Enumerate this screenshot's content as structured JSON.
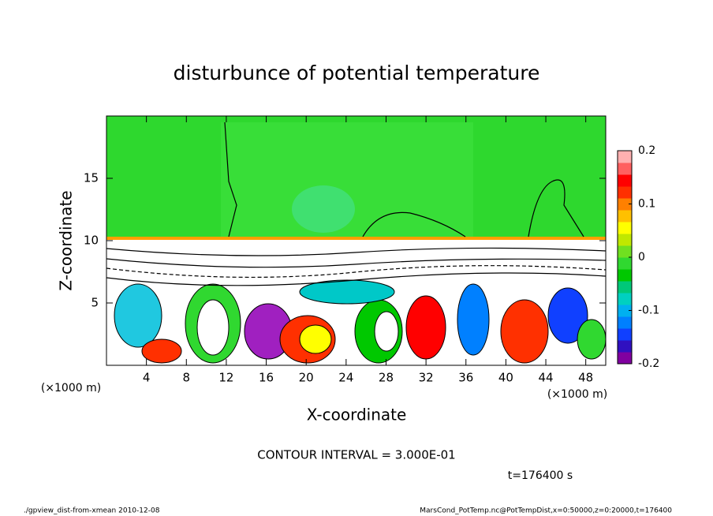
{
  "chart_data": {
    "type": "contour",
    "title": "disturbunce of potential temperature",
    "xlabel": "X-coordinate",
    "ylabel": "Z-coordinate",
    "x_unit": "(×1000 m)",
    "y_unit": "(×1000 m)",
    "xlim": [
      0,
      50
    ],
    "ylim": [
      0,
      20
    ],
    "xticks": [
      4,
      8,
      12,
      16,
      20,
      24,
      28,
      32,
      36,
      40,
      44,
      48
    ],
    "yticks": [
      5,
      10,
      15
    ],
    "colorbar": {
      "lim": [
        -0.2,
        0.2
      ],
      "ticks": [
        -0.2,
        -0.1,
        0,
        0.1,
        0.2
      ],
      "colors": [
        "#8000a0",
        "#3010c0",
        "#1040ff",
        "#0080ff",
        "#00b0f0",
        "#00d0c0",
        "#00c878",
        "#00c800",
        "#30d830",
        "#70e020",
        "#c0e800",
        "#ffff00",
        "#ffc000",
        "#ff8000",
        "#ff3000",
        "#ff0000",
        "#ff6060",
        "#ffb0b0"
      ]
    },
    "contour_interval": "CONTOUR INTERVAL = 3.000E-01",
    "time_label": "t=176400 s",
    "footer_left": "./gpview_dist-from-xmean  2010-12-08",
    "footer_right": "MarsCond_PotTemp.nc@PotTempDist,x=0:50000,z=0:20000,t=176400"
  }
}
